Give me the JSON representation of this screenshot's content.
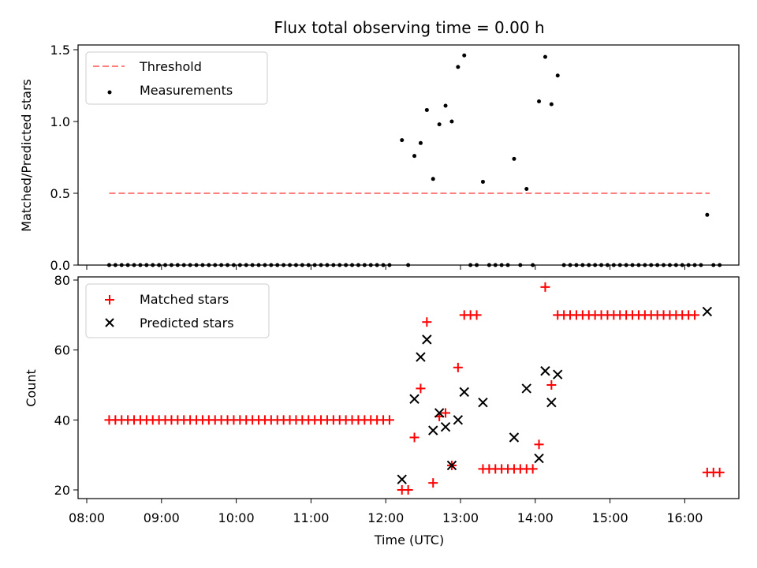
{
  "chart_data": [
    {
      "type": "scatter",
      "title": "Flux total observing time = 0.00 h",
      "xlabel": "",
      "ylabel": "Matched/Predicted stars",
      "ylim": [
        0,
        1.5
      ],
      "yticks": [
        "0.0",
        "0.5",
        "1.0",
        "1.5"
      ],
      "legend": {
        "position": "top-left",
        "entries": [
          "Threshold",
          "Measurements"
        ]
      },
      "threshold": {
        "name": "Threshold",
        "y": 0.5,
        "x_start": "08:18",
        "x_end": "16:20",
        "color": "#ff7f7f"
      },
      "series": [
        {
          "name": "Measurements",
          "color": "#000000",
          "points": [
            [
              "08:18",
              0
            ],
            [
              "08:23",
              0
            ],
            [
              "08:28",
              0
            ],
            [
              "08:33",
              0
            ],
            [
              "08:38",
              0
            ],
            [
              "08:43",
              0
            ],
            [
              "08:48",
              0
            ],
            [
              "08:53",
              0
            ],
            [
              "08:58",
              0
            ],
            [
              "09:03",
              0
            ],
            [
              "09:08",
              0
            ],
            [
              "09:13",
              0
            ],
            [
              "09:18",
              0
            ],
            [
              "09:23",
              0
            ],
            [
              "09:28",
              0
            ],
            [
              "09:33",
              0
            ],
            [
              "09:38",
              0
            ],
            [
              "09:43",
              0
            ],
            [
              "09:48",
              0
            ],
            [
              "09:53",
              0
            ],
            [
              "09:58",
              0
            ],
            [
              "10:03",
              0
            ],
            [
              "10:08",
              0
            ],
            [
              "10:13",
              0
            ],
            [
              "10:18",
              0
            ],
            [
              "10:23",
              0
            ],
            [
              "10:28",
              0
            ],
            [
              "10:33",
              0
            ],
            [
              "10:38",
              0
            ],
            [
              "10:43",
              0
            ],
            [
              "10:48",
              0
            ],
            [
              "10:53",
              0
            ],
            [
              "10:58",
              0
            ],
            [
              "11:03",
              0
            ],
            [
              "11:08",
              0
            ],
            [
              "11:13",
              0
            ],
            [
              "11:18",
              0
            ],
            [
              "11:23",
              0
            ],
            [
              "11:28",
              0
            ],
            [
              "11:33",
              0
            ],
            [
              "11:38",
              0
            ],
            [
              "11:43",
              0
            ],
            [
              "11:48",
              0
            ],
            [
              "11:53",
              0
            ],
            [
              "11:58",
              0
            ],
            [
              "12:03",
              0
            ],
            [
              "12:13",
              0.87
            ],
            [
              "12:18",
              0
            ],
            [
              "12:23",
              0.76
            ],
            [
              "12:28",
              0.85
            ],
            [
              "12:33",
              1.08
            ],
            [
              "12:38",
              0.6
            ],
            [
              "12:43",
              0.98
            ],
            [
              "12:48",
              1.11
            ],
            [
              "12:53",
              1.0
            ],
            [
              "12:58",
              1.38
            ],
            [
              "13:03",
              1.46
            ],
            [
              "13:08",
              0
            ],
            [
              "13:13",
              0
            ],
            [
              "13:18",
              0.58
            ],
            [
              "13:23",
              0
            ],
            [
              "13:28",
              0
            ],
            [
              "13:33",
              0
            ],
            [
              "13:38",
              0
            ],
            [
              "13:43",
              0.74
            ],
            [
              "13:48",
              0
            ],
            [
              "13:53",
              0.53
            ],
            [
              "13:58",
              0
            ],
            [
              "14:03",
              1.14
            ],
            [
              "14:08",
              1.45
            ],
            [
              "14:13",
              1.12
            ],
            [
              "14:18",
              1.32
            ],
            [
              "14:23",
              0
            ],
            [
              "14:28",
              0
            ],
            [
              "14:33",
              0
            ],
            [
              "14:38",
              0
            ],
            [
              "14:43",
              0
            ],
            [
              "14:48",
              0
            ],
            [
              "14:53",
              0
            ],
            [
              "14:58",
              0
            ],
            [
              "15:03",
              0
            ],
            [
              "15:08",
              0
            ],
            [
              "15:13",
              0
            ],
            [
              "15:18",
              0
            ],
            [
              "15:23",
              0
            ],
            [
              "15:28",
              0
            ],
            [
              "15:33",
              0
            ],
            [
              "15:38",
              0
            ],
            [
              "15:43",
              0
            ],
            [
              "15:48",
              0
            ],
            [
              "15:53",
              0
            ],
            [
              "15:58",
              0
            ],
            [
              "16:03",
              0
            ],
            [
              "16:08",
              0
            ],
            [
              "16:13",
              0
            ],
            [
              "16:18",
              0.35
            ],
            [
              "16:23",
              0
            ],
            [
              "16:28",
              0
            ]
          ]
        }
      ]
    },
    {
      "type": "scatter",
      "title": "",
      "xlabel": "Time (UTC)",
      "ylabel": "Count",
      "ylim": [
        18,
        80
      ],
      "yticks": [
        "20",
        "40",
        "60",
        "80"
      ],
      "xticks": [
        "08:00",
        "09:00",
        "10:00",
        "11:00",
        "12:00",
        "13:00",
        "14:00",
        "15:00",
        "16:00"
      ],
      "legend": {
        "position": "top-left",
        "entries": [
          "Matched stars",
          "Predicted stars"
        ]
      },
      "series": [
        {
          "name": "Matched stars",
          "color": "#ff0000",
          "marker": "+",
          "points": [
            [
              "08:18",
              40
            ],
            [
              "08:23",
              40
            ],
            [
              "08:28",
              40
            ],
            [
              "08:33",
              40
            ],
            [
              "08:38",
              40
            ],
            [
              "08:43",
              40
            ],
            [
              "08:48",
              40
            ],
            [
              "08:53",
              40
            ],
            [
              "08:58",
              40
            ],
            [
              "09:03",
              40
            ],
            [
              "09:08",
              40
            ],
            [
              "09:13",
              40
            ],
            [
              "09:18",
              40
            ],
            [
              "09:23",
              40
            ],
            [
              "09:28",
              40
            ],
            [
              "09:33",
              40
            ],
            [
              "09:38",
              40
            ],
            [
              "09:43",
              40
            ],
            [
              "09:48",
              40
            ],
            [
              "09:53",
              40
            ],
            [
              "09:58",
              40
            ],
            [
              "10:03",
              40
            ],
            [
              "10:08",
              40
            ],
            [
              "10:13",
              40
            ],
            [
              "10:18",
              40
            ],
            [
              "10:23",
              40
            ],
            [
              "10:28",
              40
            ],
            [
              "10:33",
              40
            ],
            [
              "10:38",
              40
            ],
            [
              "10:43",
              40
            ],
            [
              "10:48",
              40
            ],
            [
              "10:53",
              40
            ],
            [
              "10:58",
              40
            ],
            [
              "11:03",
              40
            ],
            [
              "11:08",
              40
            ],
            [
              "11:13",
              40
            ],
            [
              "11:18",
              40
            ],
            [
              "11:23",
              40
            ],
            [
              "11:28",
              40
            ],
            [
              "11:33",
              40
            ],
            [
              "11:38",
              40
            ],
            [
              "11:43",
              40
            ],
            [
              "11:48",
              40
            ],
            [
              "11:53",
              40
            ],
            [
              "11:58",
              40
            ],
            [
              "12:03",
              40
            ],
            [
              "12:13",
              20
            ],
            [
              "12:18",
              20
            ],
            [
              "12:23",
              35
            ],
            [
              "12:28",
              49
            ],
            [
              "12:33",
              68
            ],
            [
              "12:38",
              22
            ],
            [
              "12:43",
              41
            ],
            [
              "12:48",
              42
            ],
            [
              "12:53",
              27
            ],
            [
              "12:58",
              55
            ],
            [
              "13:03",
              70
            ],
            [
              "13:08",
              70
            ],
            [
              "13:13",
              70
            ],
            [
              "13:18",
              26
            ],
            [
              "13:23",
              26
            ],
            [
              "13:28",
              26
            ],
            [
              "13:33",
              26
            ],
            [
              "13:38",
              26
            ],
            [
              "13:43",
              26
            ],
            [
              "13:48",
              26
            ],
            [
              "13:53",
              26
            ],
            [
              "13:58",
              26
            ],
            [
              "14:03",
              33
            ],
            [
              "14:08",
              78
            ],
            [
              "14:13",
              50
            ],
            [
              "14:18",
              70
            ],
            [
              "14:23",
              70
            ],
            [
              "14:28",
              70
            ],
            [
              "14:33",
              70
            ],
            [
              "14:38",
              70
            ],
            [
              "14:43",
              70
            ],
            [
              "14:48",
              70
            ],
            [
              "14:53",
              70
            ],
            [
              "14:58",
              70
            ],
            [
              "15:03",
              70
            ],
            [
              "15:08",
              70
            ],
            [
              "15:13",
              70
            ],
            [
              "15:18",
              70
            ],
            [
              "15:23",
              70
            ],
            [
              "15:28",
              70
            ],
            [
              "15:33",
              70
            ],
            [
              "15:38",
              70
            ],
            [
              "15:43",
              70
            ],
            [
              "15:48",
              70
            ],
            [
              "15:53",
              70
            ],
            [
              "15:58",
              70
            ],
            [
              "16:03",
              70
            ],
            [
              "16:08",
              70
            ],
            [
              "16:18",
              25
            ],
            [
              "16:23",
              25
            ],
            [
              "16:28",
              25
            ]
          ]
        },
        {
          "name": "Predicted stars",
          "color": "#000000",
          "marker": "x",
          "points": [
            [
              "12:13",
              23
            ],
            [
              "12:23",
              46
            ],
            [
              "12:28",
              58
            ],
            [
              "12:33",
              63
            ],
            [
              "12:38",
              37
            ],
            [
              "12:43",
              42
            ],
            [
              "12:48",
              38
            ],
            [
              "12:53",
              27
            ],
            [
              "12:58",
              40
            ],
            [
              "13:03",
              48
            ],
            [
              "13:18",
              45
            ],
            [
              "13:43",
              35
            ],
            [
              "13:53",
              49
            ],
            [
              "14:03",
              29
            ],
            [
              "14:08",
              54
            ],
            [
              "14:13",
              45
            ],
            [
              "14:18",
              53
            ],
            [
              "16:18",
              71
            ]
          ]
        }
      ]
    }
  ]
}
